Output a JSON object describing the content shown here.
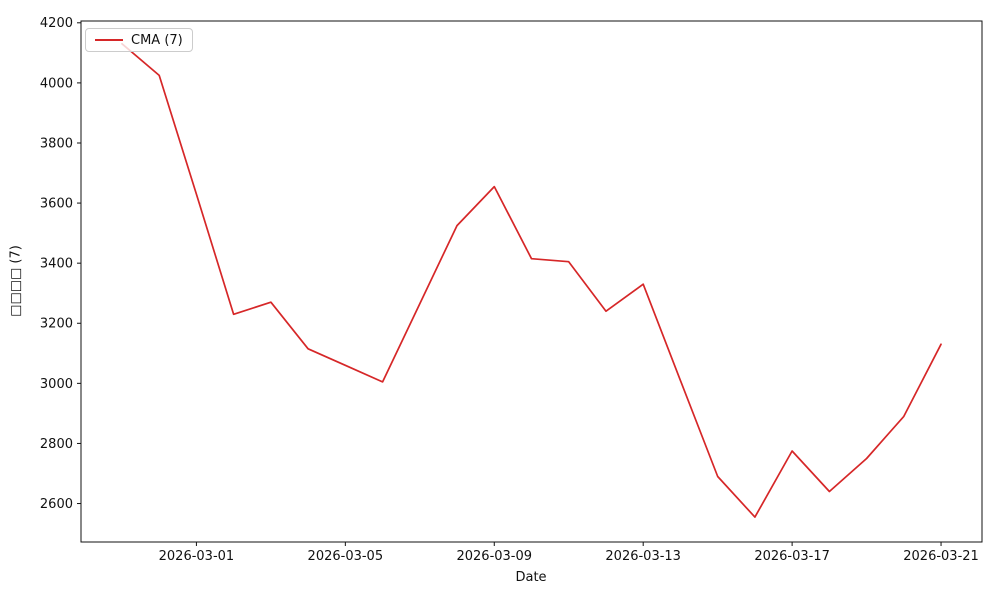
{
  "figure": {
    "background": "#ffffff",
    "text_color": "#111111"
  },
  "chart_data": {
    "type": "line",
    "title": "",
    "xlabel": "Date",
    "ylabel": "□□□□ (7)",
    "grid": false,
    "legend_position": "upper left",
    "x": [
      "2026-02-27",
      "2026-02-28",
      "2026-03-01",
      "2026-03-02",
      "2026-03-03",
      "2026-03-04",
      "2026-03-05",
      "2026-03-06",
      "2026-03-07",
      "2026-03-08",
      "2026-03-09",
      "2026-03-10",
      "2026-03-11",
      "2026-03-12",
      "2026-03-13",
      "2026-03-14",
      "2026-03-15",
      "2026-03-16",
      "2026-03-17",
      "2026-03-18",
      "2026-03-19",
      "2026-03-20",
      "2026-03-21"
    ],
    "series": [
      {
        "name": "CMA (7)",
        "color": "#d62728",
        "values": [
          4130,
          4025,
          3630,
          3230,
          3270,
          3115,
          3060,
          3005,
          3265,
          3525,
          3655,
          3415,
          3405,
          3240,
          3330,
          3010,
          2690,
          2555,
          2775,
          2640,
          2750,
          2890,
          3130
        ]
      }
    ],
    "xtick_labels": [
      "2026-03-01",
      "2026-03-05",
      "2026-03-09",
      "2026-03-13",
      "2026-03-17",
      "2026-03-21"
    ],
    "xtick_day_indices": [
      2,
      6,
      10,
      14,
      18,
      22
    ],
    "yticks": [
      2600,
      2800,
      3000,
      3200,
      3400,
      3600,
      3800,
      4000,
      4200
    ],
    "ylim": [
      2472,
      4206
    ],
    "xlim_days": [
      -1.1,
      23.1
    ],
    "axis_color": "#111111"
  }
}
